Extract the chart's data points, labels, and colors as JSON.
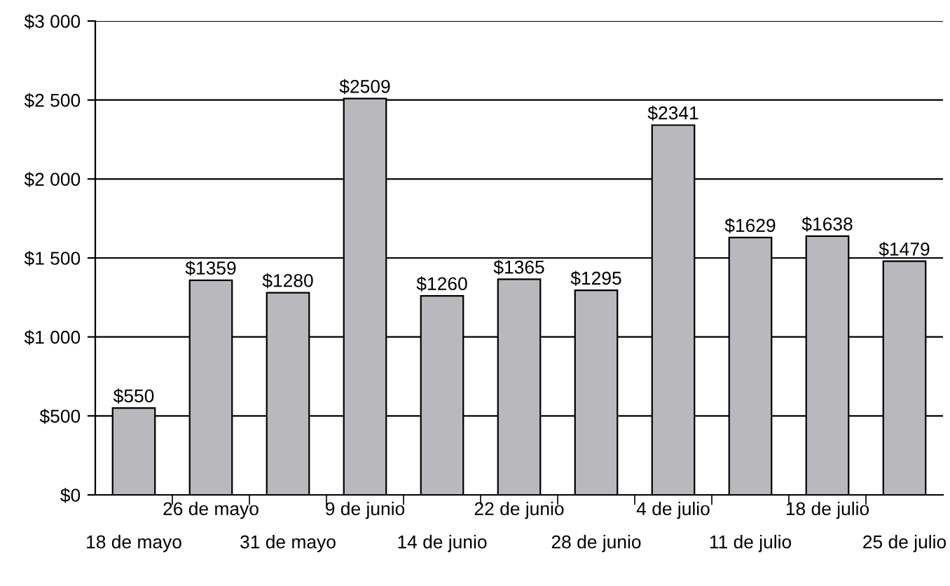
{
  "chart_data": {
    "type": "bar",
    "categories": [
      "18 de mayo",
      "26 de mayo",
      "31 de mayo",
      "9 de junio",
      "14 de junio",
      "22 de junio",
      "28 de junio",
      "4 de julio",
      "11 de julio",
      "18 de julio",
      "25 de julio"
    ],
    "values": [
      550,
      1359,
      1280,
      2509,
      1260,
      1365,
      1295,
      2341,
      1629,
      1638,
      1479
    ],
    "value_labels": [
      "$550",
      "$1359",
      "$1280",
      "$2509",
      "$1260",
      "$1365",
      "$1295",
      "$2341",
      "$1629",
      "$1638",
      "$1479"
    ],
    "color": "#b9b9bd",
    "ylim": [
      0,
      3000
    ],
    "yticks": [
      {
        "value": 0,
        "label": "$0"
      },
      {
        "value": 500,
        "label": "$500"
      },
      {
        "value": 1000,
        "label": "$1 000"
      },
      {
        "value": 1500,
        "label": "$1 500"
      },
      {
        "value": 2000,
        "label": "$2 000"
      },
      {
        "value": 2500,
        "label": "$2 500"
      },
      {
        "value": 3000,
        "label": "$3 000"
      }
    ],
    "grid": "y",
    "legend": false
  }
}
